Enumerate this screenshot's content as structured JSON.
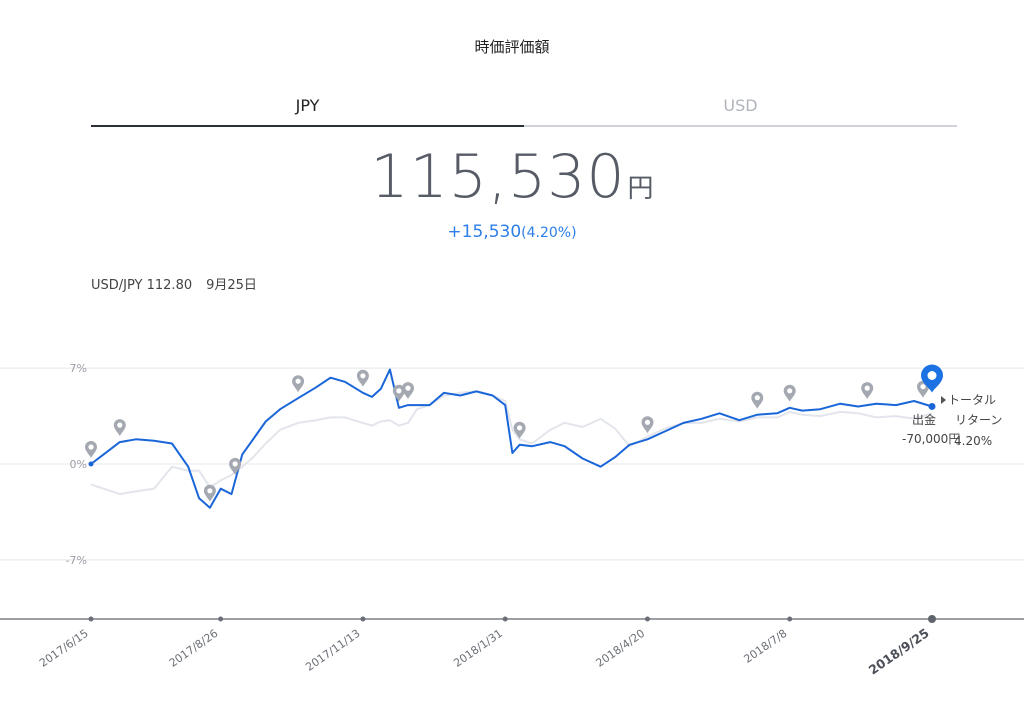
{
  "header": {
    "title": "時価評価額"
  },
  "tabs": [
    {
      "label": "JPY",
      "active": true
    },
    {
      "label": "USD",
      "active": false
    }
  ],
  "valuation": {
    "amount": "115,530",
    "unit": "円",
    "change": "+15,530",
    "change_pct": "(4.20%)"
  },
  "fx": {
    "pair": "USD/JPY 112.80",
    "date": "9月25日"
  },
  "colors": {
    "series_main": "#1a66d9",
    "series_compare": "#e3e5ec",
    "accent": "#2c7ee8",
    "marker": "#a4a8b0"
  },
  "tooltip": {
    "col1_title": "トータル",
    "col1_label": "出金",
    "col1_value": "-70,000円",
    "col2_title": "リターン",
    "col2_value": "4.20%"
  },
  "chart_data": {
    "type": "line",
    "title": "",
    "xlabel": "",
    "ylabel": "",
    "ylim": [
      -12,
      12
    ],
    "y_ticks": [
      {
        "value": 7,
        "label": "7%"
      },
      {
        "value": 0,
        "label": "0%"
      },
      {
        "value": -7,
        "label": "-7%"
      }
    ],
    "x_ticks": [
      "2017/6/15",
      "2017/8/26",
      "2017/11/13",
      "2018/1/31",
      "2018/4/20",
      "2018/7/8",
      "2018/9/25"
    ],
    "x_tick_emphasized": "2018/9/25",
    "grid": true,
    "series": [
      {
        "role": "main",
        "x": [
          "2017/6/15",
          "2017/6/22",
          "2017/7/1",
          "2017/7/10",
          "2017/7/20",
          "2017/7/30",
          "2017/8/8",
          "2017/8/14",
          "2017/8/20",
          "2017/8/26",
          "2017/9/1",
          "2017/9/7",
          "2017/9/13",
          "2017/9/20",
          "2017/9/28",
          "2017/10/8",
          "2017/10/18",
          "2017/10/26",
          "2017/11/3",
          "2017/11/13",
          "2017/11/18",
          "2017/11/23",
          "2017/11/28",
          "2017/12/3",
          "2017/12/8",
          "2017/12/13",
          "2017/12/20",
          "2017/12/28",
          "2018/1/6",
          "2018/1/15",
          "2018/1/24",
          "2018/1/31",
          "2018/2/4",
          "2018/2/8",
          "2018/2/15",
          "2018/2/25",
          "2018/3/5",
          "2018/3/15",
          "2018/3/25",
          "2018/4/2",
          "2018/4/10",
          "2018/4/20",
          "2018/4/30",
          "2018/5/10",
          "2018/5/20",
          "2018/5/30",
          "2018/6/10",
          "2018/6/20",
          "2018/7/1",
          "2018/7/8",
          "2018/7/15",
          "2018/7/25",
          "2018/8/5",
          "2018/8/15",
          "2018/8/25",
          "2018/9/5",
          "2018/9/15",
          "2018/9/25"
        ],
        "values": [
          0,
          0.7,
          1.6,
          1.8,
          1.7,
          1.5,
          -0.2,
          -2.5,
          -3.2,
          -1.8,
          -2.2,
          0.7,
          1.8,
          3.1,
          4.0,
          4.8,
          5.6,
          6.3,
          6.0,
          5.2,
          4.9,
          5.5,
          6.9,
          4.1,
          4.3,
          4.3,
          4.3,
          5.2,
          5.0,
          5.3,
          5.0,
          4.3,
          0.8,
          1.4,
          1.3,
          1.6,
          1.3,
          0.4,
          -0.2,
          0.5,
          1.4,
          1.8,
          2.4,
          3.0,
          3.3,
          3.7,
          3.2,
          3.6,
          3.7,
          4.1,
          3.9,
          4.0,
          4.4,
          4.2,
          4.4,
          4.3,
          4.6,
          4.2
        ]
      },
      {
        "role": "compare",
        "x": [
          "2017/6/15",
          "2017/6/22",
          "2017/7/1",
          "2017/7/10",
          "2017/7/20",
          "2017/7/30",
          "2017/8/8",
          "2017/8/14",
          "2017/8/20",
          "2017/8/26",
          "2017/9/1",
          "2017/9/7",
          "2017/9/13",
          "2017/9/20",
          "2017/9/28",
          "2017/10/8",
          "2017/10/18",
          "2017/10/26",
          "2017/11/3",
          "2017/11/13",
          "2017/11/18",
          "2017/11/23",
          "2017/11/28",
          "2017/12/3",
          "2017/12/8",
          "2017/12/13",
          "2017/12/20",
          "2017/12/28",
          "2018/1/6",
          "2018/1/15",
          "2018/1/24",
          "2018/1/31",
          "2018/2/4",
          "2018/2/8",
          "2018/2/15",
          "2018/2/25",
          "2018/3/5",
          "2018/3/15",
          "2018/3/25",
          "2018/4/2",
          "2018/4/10",
          "2018/4/20",
          "2018/4/30",
          "2018/5/10",
          "2018/5/20",
          "2018/5/30",
          "2018/6/10",
          "2018/6/20",
          "2018/7/1",
          "2018/7/8",
          "2018/7/15",
          "2018/7/25",
          "2018/8/5",
          "2018/8/15",
          "2018/8/25",
          "2018/9/5",
          "2018/9/15",
          "2018/9/25"
        ],
        "values": [
          -1.5,
          -1.8,
          -2.2,
          -2.0,
          -1.8,
          -0.2,
          -0.5,
          -0.5,
          -1.7,
          -1.2,
          -0.8,
          -0.2,
          0.5,
          1.5,
          2.5,
          3.0,
          3.2,
          3.4,
          3.4,
          3.0,
          2.8,
          3.1,
          3.2,
          2.8,
          3.0,
          4.0,
          4.3,
          5.0,
          5.2,
          5.3,
          5.0,
          4.6,
          2.5,
          1.8,
          1.5,
          2.5,
          3.0,
          2.7,
          3.3,
          2.6,
          1.3,
          2.0,
          2.6,
          3.0,
          3.0,
          3.3,
          3.1,
          3.4,
          3.4,
          3.8,
          3.6,
          3.5,
          3.8,
          3.7,
          3.4,
          3.5,
          3.3,
          3.7
        ]
      }
    ],
    "markers_x": [
      "2017/6/15",
      "2017/7/1",
      "2017/8/20",
      "2017/9/3",
      "2017/10/8",
      "2017/11/13",
      "2017/12/3",
      "2017/12/8",
      "2018/2/8",
      "2018/4/20",
      "2018/6/20",
      "2018/7/8",
      "2018/8/20",
      "2018/9/20"
    ],
    "current_x": "2018/9/25"
  }
}
